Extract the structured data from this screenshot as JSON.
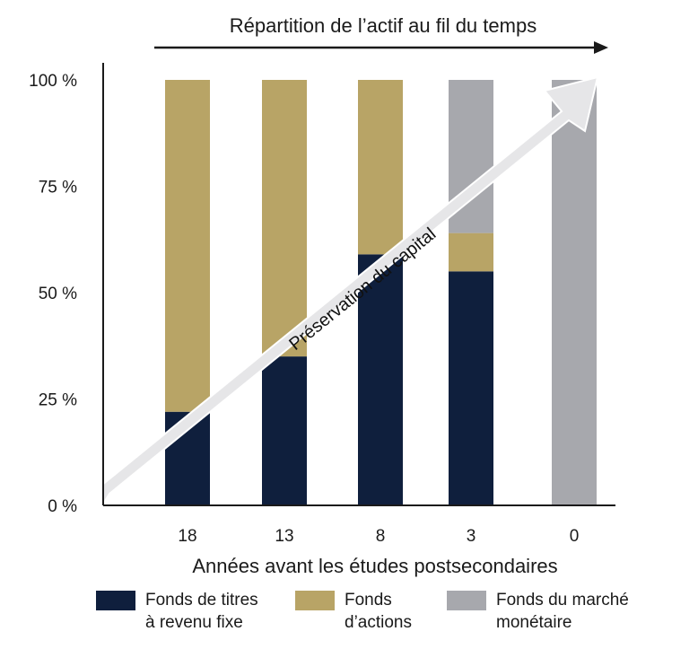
{
  "chart_data": {
    "type": "bar",
    "stacked": true,
    "title": "Répartition de l’actif au fil du temps",
    "xlabel": "Années avant les études postsecondaires",
    "ylabel": "",
    "categories": [
      "18",
      "13",
      "8",
      "3",
      "0"
    ],
    "yticks": [
      "0 %",
      "25 %",
      "50 %",
      "75 %",
      "100 %"
    ],
    "ylim": [
      0,
      100
    ],
    "series": [
      {
        "name": "Fonds de titres à revenu fixe",
        "legend_lines": [
          "Fonds de titres",
          "à revenu fixe"
        ],
        "color": "#0f1f3d",
        "values": [
          22,
          35,
          59,
          55,
          0
        ]
      },
      {
        "name": "Fonds d’actions",
        "legend_lines": [
          "Fonds",
          "d’actions"
        ],
        "color": "#b8a466",
        "values": [
          78,
          65,
          41,
          9,
          0
        ]
      },
      {
        "name": "Fonds du marché monétaire",
        "legend_lines": [
          "Fonds du marché",
          "monétaire"
        ],
        "color": "#a7a8ad",
        "values": [
          0,
          0,
          0,
          36,
          100
        ]
      }
    ],
    "annotation": "Préservation du capital",
    "grid": false,
    "legend_position": "bottom"
  }
}
